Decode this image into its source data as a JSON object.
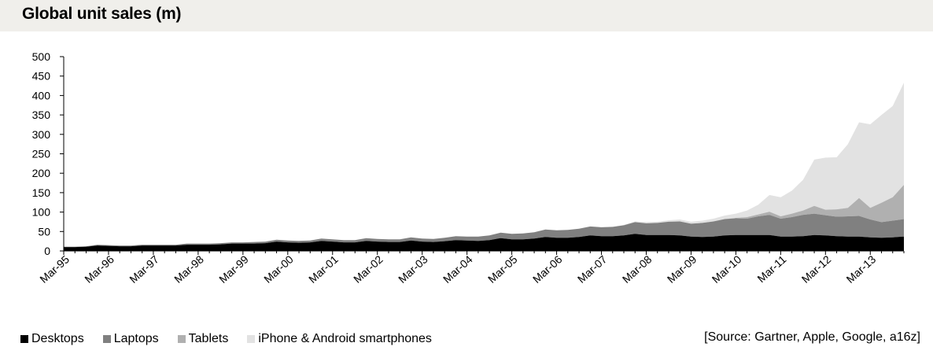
{
  "header": {
    "title": "Global unit sales (m)"
  },
  "source": "[Source: Gartner, Apple, Google, a16z]",
  "chart_data": {
    "type": "area",
    "stacked": true,
    "title": "Global unit sales (m)",
    "xlabel": "",
    "ylabel": "",
    "ylim": [
      0,
      500
    ],
    "yticks": [
      0,
      50,
      100,
      150,
      200,
      250,
      300,
      350,
      400,
      450,
      500
    ],
    "xtick_labels": [
      "Mar-95",
      "Mar-96",
      "Mar-97",
      "Mar-98",
      "Mar-99",
      "Mar-00",
      "Mar-01",
      "Mar-02",
      "Mar-03",
      "Mar-04",
      "Mar-05",
      "Mar-06",
      "Mar-07",
      "Mar-08",
      "Mar-09",
      "Mar-10",
      "Mar-11",
      "Mar-12",
      "Mar-13"
    ],
    "x": [
      "Mar-95",
      "Jun-95",
      "Sep-95",
      "Dec-95",
      "Mar-96",
      "Jun-96",
      "Sep-96",
      "Dec-96",
      "Mar-97",
      "Jun-97",
      "Sep-97",
      "Dec-97",
      "Mar-98",
      "Jun-98",
      "Sep-98",
      "Dec-98",
      "Mar-99",
      "Jun-99",
      "Sep-99",
      "Dec-99",
      "Mar-00",
      "Jun-00",
      "Sep-00",
      "Dec-00",
      "Mar-01",
      "Jun-01",
      "Sep-01",
      "Dec-01",
      "Mar-02",
      "Jun-02",
      "Sep-02",
      "Dec-02",
      "Mar-03",
      "Jun-03",
      "Sep-03",
      "Dec-03",
      "Mar-04",
      "Jun-04",
      "Sep-04",
      "Dec-04",
      "Mar-05",
      "Jun-05",
      "Sep-05",
      "Dec-05",
      "Mar-06",
      "Jun-06",
      "Sep-06",
      "Dec-06",
      "Mar-07",
      "Jun-07",
      "Sep-07",
      "Dec-07",
      "Mar-08",
      "Jun-08",
      "Sep-08",
      "Dec-08",
      "Mar-09",
      "Jun-09",
      "Sep-09",
      "Dec-09",
      "Mar-10",
      "Jun-10",
      "Sep-10",
      "Dec-10",
      "Mar-11",
      "Jun-11",
      "Sep-11",
      "Dec-11",
      "Mar-12",
      "Jun-12",
      "Sep-12",
      "Dec-12",
      "Mar-13",
      "Jun-13",
      "Sep-13",
      "Dec-13"
    ],
    "series": [
      {
        "name": "Desktops",
        "color": "#000000",
        "values": [
          10,
          10,
          11,
          14,
          13,
          12,
          12,
          14,
          14,
          14,
          14,
          16,
          16,
          16,
          17,
          19,
          19,
          19,
          20,
          24,
          22,
          21,
          22,
          26,
          24,
          22,
          22,
          26,
          24,
          23,
          23,
          27,
          24,
          23,
          25,
          28,
          27,
          26,
          28,
          33,
          30,
          30,
          32,
          36,
          34,
          34,
          36,
          40,
          38,
          38,
          40,
          44,
          41,
          41,
          41,
          40,
          37,
          36,
          37,
          40,
          41,
          41,
          41,
          41,
          37,
          37,
          38,
          41,
          40,
          38,
          37,
          37,
          35,
          34,
          35,
          37
        ]
      },
      {
        "name": "Laptops",
        "color": "#808080",
        "values": [
          1,
          1,
          1,
          2,
          2,
          2,
          2,
          2,
          2,
          2,
          2,
          3,
          3,
          3,
          3,
          3,
          3,
          4,
          4,
          5,
          5,
          5,
          5,
          6,
          6,
          6,
          6,
          7,
          7,
          7,
          7,
          8,
          8,
          8,
          9,
          10,
          10,
          11,
          12,
          14,
          14,
          15,
          16,
          19,
          19,
          20,
          21,
          23,
          23,
          24,
          26,
          30,
          30,
          31,
          34,
          36,
          33,
          36,
          39,
          42,
          43,
          42,
          48,
          52,
          46,
          50,
          55,
          55,
          52,
          50,
          52,
          53,
          46,
          40,
          43,
          45
        ]
      },
      {
        "name": "Tablets",
        "color": "#b0b0b0",
        "values": [
          0,
          0,
          0,
          0,
          0,
          0,
          0,
          0,
          0,
          0,
          0,
          0,
          0,
          0,
          0,
          0,
          0,
          0,
          0,
          0,
          0,
          0,
          0,
          0,
          0,
          0,
          0,
          0,
          0,
          0,
          0,
          0,
          0,
          0,
          0,
          0,
          0,
          0,
          0,
          0,
          0,
          0,
          0,
          0,
          0,
          0,
          0,
          0,
          0,
          0,
          0,
          0,
          0,
          0,
          0,
          0,
          0,
          0,
          0,
          0,
          1,
          4,
          5,
          8,
          6,
          9,
          11,
          20,
          14,
          19,
          22,
          46,
          30,
          50,
          60,
          88
        ]
      },
      {
        "name": "iPhone & Android smartphones",
        "color": "#e2e2e2",
        "values": [
          0,
          0,
          0,
          0,
          0,
          0,
          0,
          0,
          0,
          0,
          0,
          0,
          0,
          0,
          0,
          0,
          0,
          0,
          0,
          0,
          0,
          0,
          0,
          0,
          0,
          0,
          0,
          0,
          0,
          0,
          0,
          0,
          0,
          0,
          0,
          0,
          0,
          0,
          0,
          0,
          0,
          0,
          0,
          0,
          0,
          0,
          0,
          0,
          0,
          0,
          1,
          2,
          3,
          3,
          4,
          5,
          5,
          6,
          7,
          9,
          11,
          17,
          25,
          43,
          49,
          59,
          79,
          119,
          134,
          134,
          164,
          195,
          215,
          226,
          235,
          263
        ]
      }
    ],
    "legend_placement": "bottom-left",
    "grid": false
  }
}
